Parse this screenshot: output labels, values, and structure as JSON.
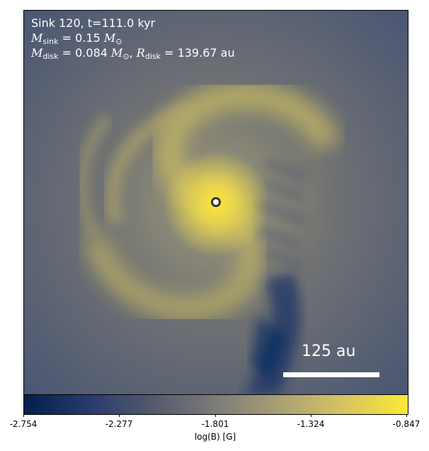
{
  "info": {
    "line1": "Sink 120, t=111.0 kyr",
    "msink_symbol": "M",
    "msink_sub": "sink",
    "msink_value": "= 0.15",
    "msun_symbol": "M",
    "msun_sub": "⊙",
    "mdisk_symbol": "M",
    "mdisk_sub": "disk",
    "mdisk_value": "= 0.084",
    "rdisk_symbol": "R",
    "rdisk_sub": "disk",
    "rdisk_value": "= 139.67 au"
  },
  "scalebar": {
    "label": "125 au"
  },
  "colorbar": {
    "label": "log(B) [G]",
    "ticks": [
      "-2.754",
      "-2.277",
      "-1.801",
      "-1.324",
      "-0.847"
    ],
    "colors": {
      "low": "#00204c",
      "mid": "#7c7b78",
      "high": "#fde737"
    }
  }
}
